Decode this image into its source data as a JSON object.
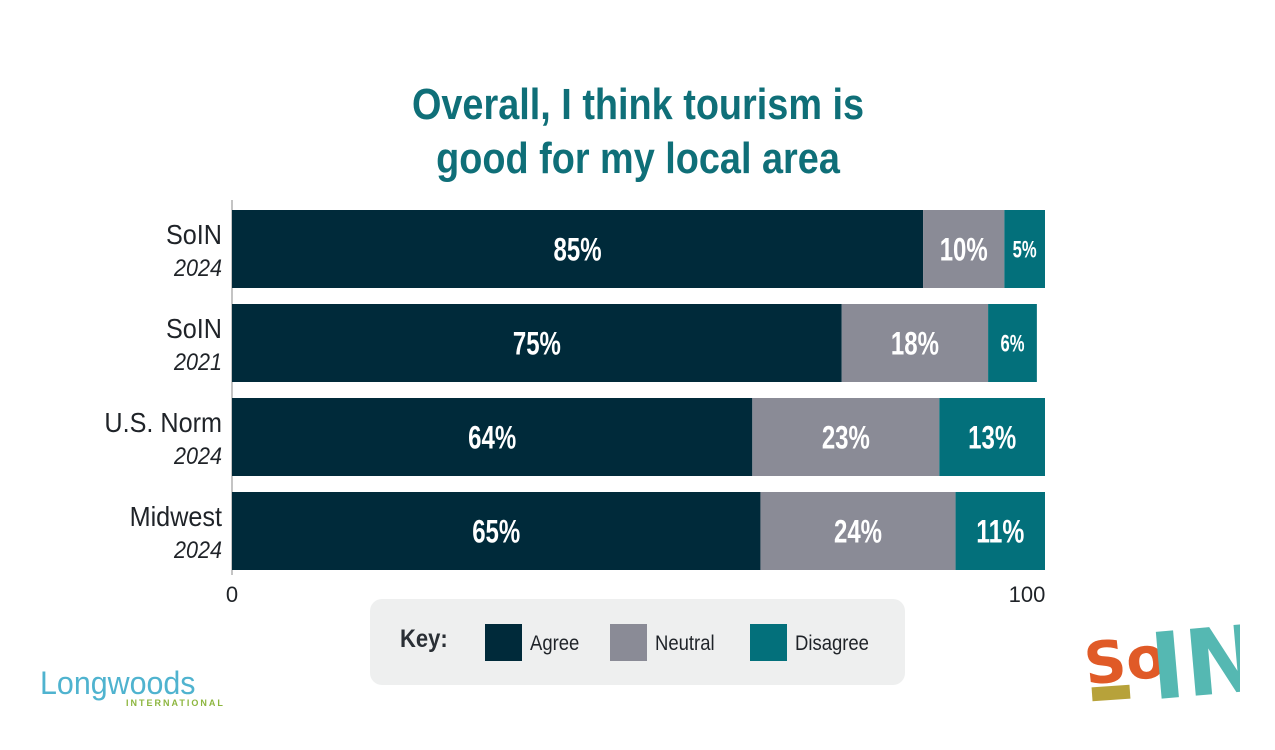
{
  "title_line1": "Overall, I think tourism is",
  "title_line2": "good for my local area",
  "colors": {
    "title": "#0f6f78",
    "agree": "#002a3a",
    "neutral": "#8a8b96",
    "disagree": "#03707b",
    "axis": "#888888"
  },
  "chart_data": {
    "type": "bar",
    "orientation": "horizontal",
    "stacked": true,
    "title": "Overall, I think tourism is good for my local area",
    "categories": [
      {
        "name": "SoIN",
        "year": "2024"
      },
      {
        "name": "SoIN",
        "year": "2021"
      },
      {
        "name": "U.S. Norm",
        "year": "2024"
      },
      {
        "name": "Midwest",
        "year": "2024"
      }
    ],
    "series": [
      {
        "name": "Agree",
        "color": "#002a3a",
        "values": [
          85,
          75,
          64,
          65
        ],
        "labels": [
          "85%",
          "75%",
          "64%",
          "65%"
        ]
      },
      {
        "name": "Neutral",
        "color": "#8a8b96",
        "values": [
          10,
          18,
          23,
          24
        ],
        "labels": [
          "10%",
          "18%",
          "23%",
          "24%"
        ]
      },
      {
        "name": "Disagree",
        "color": "#03707b",
        "values": [
          5,
          6,
          13,
          11
        ],
        "labels": [
          "5%",
          "6%",
          "13%",
          "11%"
        ]
      }
    ],
    "xlim": [
      0,
      100
    ],
    "xticks": [
      "0",
      "100"
    ],
    "grid": false,
    "legend_position": "bottom"
  },
  "key": {
    "title": "Key:",
    "items": [
      {
        "label": "Agree",
        "color": "#002a3a"
      },
      {
        "label": "Neutral",
        "color": "#8a8b96"
      },
      {
        "label": "Disagree",
        "color": "#03707b"
      }
    ]
  },
  "logos": {
    "longwoods": {
      "name": "Longwoods",
      "sub": "INTERNATIONAL"
    },
    "soin": {
      "text": "SoIN"
    }
  }
}
